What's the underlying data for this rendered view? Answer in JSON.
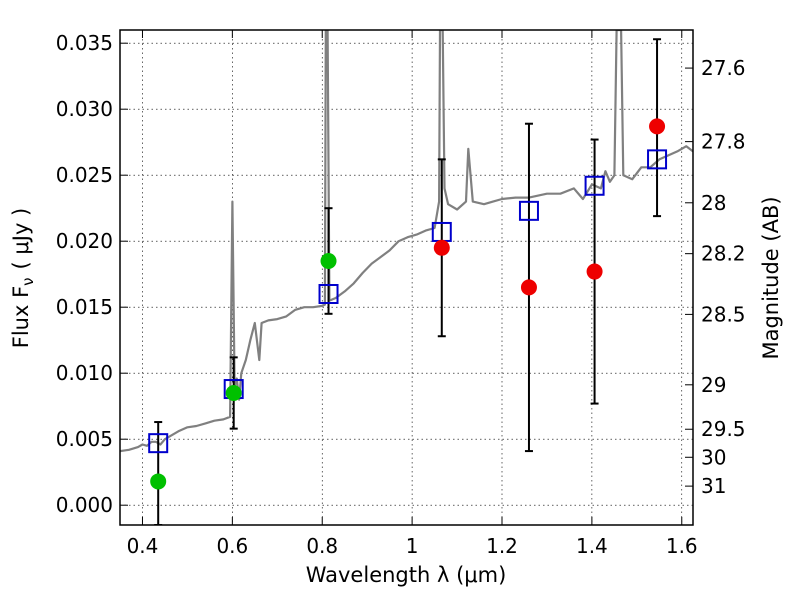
{
  "chart_data": {
    "type": "scatter",
    "xlabel": "Wavelength  λ (μm)",
    "ylabel": "Flux  F",
    "ylabel_sub": "ν",
    "ylabel_unit": "( μJy )",
    "y2label": "Magnitude (AB)",
    "xlim": [
      0.35,
      1.625
    ],
    "ylim": [
      -0.0015,
      0.036
    ],
    "xticks": [
      0.4,
      0.6,
      0.8,
      1.0,
      1.2,
      1.4,
      1.6
    ],
    "xtick_labels": [
      "0.4",
      "0.6",
      "0.8",
      "1",
      "1.2",
      "1.4",
      "1.6"
    ],
    "yticks": [
      0.0,
      0.005,
      0.01,
      0.015,
      0.02,
      0.025,
      0.03,
      0.035
    ],
    "ytick_labels": [
      "0.000",
      "0.005",
      "0.010",
      "0.015",
      "0.020",
      "0.025",
      "0.030",
      "0.035"
    ],
    "y2ticks": [
      27.6,
      27.8,
      28,
      28.2,
      28.5,
      29,
      29.5,
      30,
      31
    ],
    "y2tick_labels": [
      "27.6",
      "27.8",
      "28",
      "28.2",
      "28.5",
      "29",
      "29.5",
      "30",
      "31"
    ],
    "grid": true,
    "model_spectrum": {
      "color": "#808080",
      "points": [
        [
          0.35,
          0.0041
        ],
        [
          0.37,
          0.0042
        ],
        [
          0.39,
          0.0044
        ],
        [
          0.4,
          0.0046
        ],
        [
          0.41,
          0.0045
        ],
        [
          0.42,
          0.0048
        ],
        [
          0.43,
          0.0048
        ],
        [
          0.44,
          0.0046
        ],
        [
          0.45,
          0.005
        ],
        [
          0.46,
          0.0052
        ],
        [
          0.48,
          0.0056
        ],
        [
          0.5,
          0.0059
        ],
        [
          0.52,
          0.006
        ],
        [
          0.54,
          0.0062
        ],
        [
          0.56,
          0.0064
        ],
        [
          0.58,
          0.0065
        ],
        [
          0.595,
          0.0067
        ],
        [
          0.6,
          0.023
        ],
        [
          0.605,
          0.009
        ],
        [
          0.61,
          0.0096
        ],
        [
          0.615,
          0.008
        ],
        [
          0.62,
          0.01
        ],
        [
          0.63,
          0.011
        ],
        [
          0.64,
          0.0125
        ],
        [
          0.65,
          0.0138
        ],
        [
          0.66,
          0.011
        ],
        [
          0.665,
          0.0138
        ],
        [
          0.68,
          0.014
        ],
        [
          0.7,
          0.0141
        ],
        [
          0.72,
          0.0143
        ],
        [
          0.74,
          0.0148
        ],
        [
          0.76,
          0.015
        ],
        [
          0.78,
          0.015
        ],
        [
          0.8,
          0.0151
        ],
        [
          0.806,
          0.0152
        ],
        [
          0.808,
          0.036
        ],
        [
          0.812,
          0.036
        ],
        [
          0.816,
          0.0155
        ],
        [
          0.83,
          0.0157
        ],
        [
          0.85,
          0.0162
        ],
        [
          0.87,
          0.0168
        ],
        [
          0.89,
          0.0176
        ],
        [
          0.91,
          0.0183
        ],
        [
          0.93,
          0.0188
        ],
        [
          0.95,
          0.0193
        ],
        [
          0.97,
          0.02
        ],
        [
          0.99,
          0.0203
        ],
        [
          1.01,
          0.0205
        ],
        [
          1.03,
          0.0208
        ],
        [
          1.05,
          0.021
        ],
        [
          1.06,
          0.023
        ],
        [
          1.062,
          0.036
        ],
        [
          1.068,
          0.036
        ],
        [
          1.072,
          0.024
        ],
        [
          1.08,
          0.0228
        ],
        [
          1.1,
          0.0224
        ],
        [
          1.12,
          0.023
        ],
        [
          1.125,
          0.027
        ],
        [
          1.135,
          0.023
        ],
        [
          1.16,
          0.0228
        ],
        [
          1.18,
          0.023
        ],
        [
          1.2,
          0.0232
        ],
        [
          1.23,
          0.0233
        ],
        [
          1.26,
          0.0233
        ],
        [
          1.3,
          0.0236
        ],
        [
          1.33,
          0.0236
        ],
        [
          1.36,
          0.024
        ],
        [
          1.38,
          0.0232
        ],
        [
          1.4,
          0.0243
        ],
        [
          1.42,
          0.024
        ],
        [
          1.43,
          0.0253
        ],
        [
          1.44,
          0.0245
        ],
        [
          1.45,
          0.025
        ],
        [
          1.455,
          0.036
        ],
        [
          1.465,
          0.036
        ],
        [
          1.47,
          0.025
        ],
        [
          1.49,
          0.0247
        ],
        [
          1.51,
          0.0256
        ],
        [
          1.53,
          0.0256
        ],
        [
          1.55,
          0.0262
        ],
        [
          1.57,
          0.0265
        ],
        [
          1.59,
          0.0268
        ],
        [
          1.61,
          0.0272
        ],
        [
          1.625,
          0.0268
        ]
      ]
    },
    "series": [
      {
        "marker": "square",
        "color": "#0000cc",
        "x": [
          0.435,
          0.603,
          0.814,
          1.066,
          1.26,
          1.406,
          1.545
        ],
        "y": [
          0.0047,
          0.0088,
          0.016,
          0.0207,
          0.0223,
          0.0242,
          0.0262
        ]
      },
      {
        "marker": "circle",
        "color": "#00c000",
        "x": [
          0.435,
          0.603,
          0.814
        ],
        "y": [
          0.0018,
          0.0085,
          0.0185
        ]
      },
      {
        "marker": "circle",
        "color": "#ee0000",
        "x": [
          1.066,
          1.26,
          1.406,
          1.545
        ],
        "y": [
          0.0195,
          0.0165,
          0.0177,
          0.0287
        ]
      }
    ],
    "error_bars": [
      {
        "x": 0.435,
        "low": -0.0015,
        "high": 0.0063
      },
      {
        "x": 0.603,
        "low": 0.0058,
        "high": 0.0112
      },
      {
        "x": 0.814,
        "low": 0.0145,
        "high": 0.0225
      },
      {
        "x": 1.066,
        "low": 0.0128,
        "high": 0.0262
      },
      {
        "x": 1.26,
        "low": 0.0041,
        "high": 0.0289
      },
      {
        "x": 1.406,
        "low": 0.0077,
        "high": 0.0277
      },
      {
        "x": 1.545,
        "low": 0.0219,
        "high": 0.0353
      }
    ]
  }
}
